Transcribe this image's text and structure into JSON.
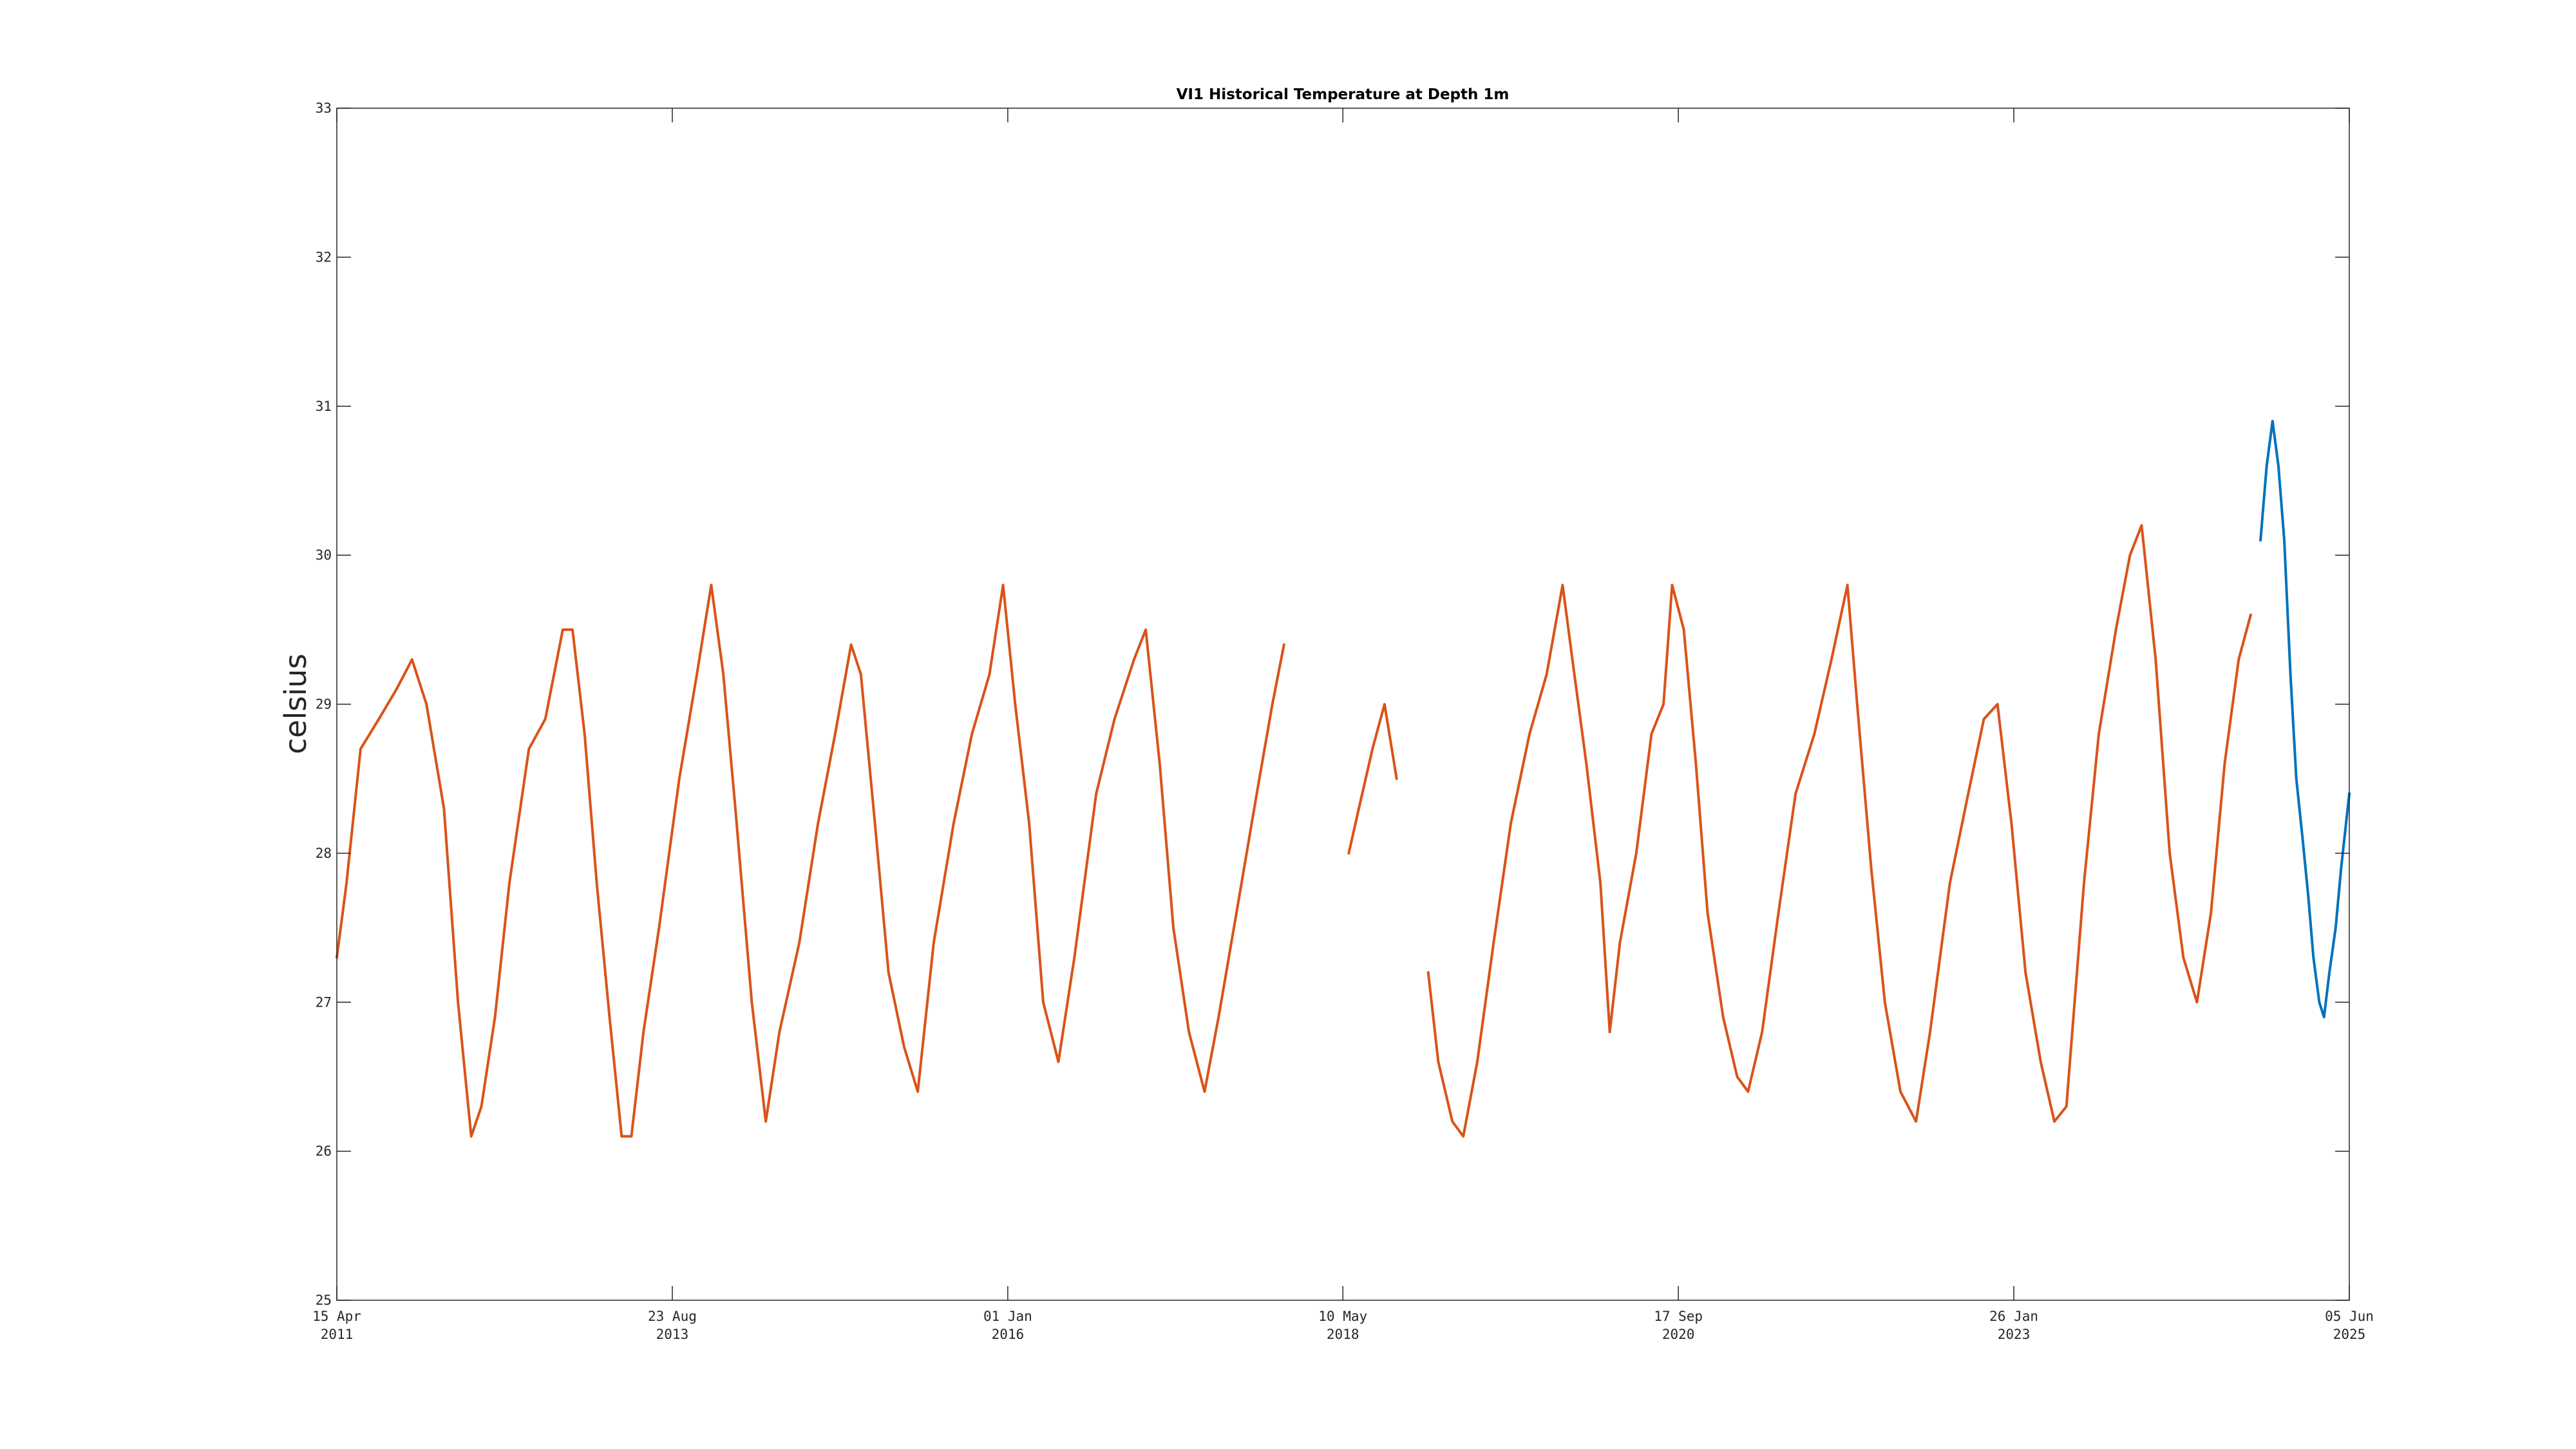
{
  "chart_data": {
    "type": "line",
    "title": "VI1 Historical Temperature at Depth 1m",
    "xlabel": "",
    "ylabel": "celsius",
    "xlim": [
      "2011-04-15",
      "2025-06-05"
    ],
    "ylim": [
      25,
      33
    ],
    "y_ticks": [
      "25",
      "26",
      "27",
      "28",
      "29",
      "30",
      "31",
      "32",
      "33"
    ],
    "x_ticks": [
      {
        "date": "2011-04-15",
        "line1": "15 Apr",
        "line2": "2011"
      },
      {
        "date": "2013-08-23",
        "line1": "23 Aug",
        "line2": "2013"
      },
      {
        "date": "2016-01-01",
        "line1": "01 Jan",
        "line2": "2016"
      },
      {
        "date": "2018-05-10",
        "line1": "10 May",
        "line2": "2018"
      },
      {
        "date": "2020-09-17",
        "line1": "17 Sep",
        "line2": "2020"
      },
      {
        "date": "2023-01-26",
        "line1": "26 Jan",
        "line2": "2023"
      },
      {
        "date": "2025-06-05",
        "line1": "05 Jun",
        "line2": "2025"
      }
    ],
    "grid": false,
    "legend": "none",
    "series": [
      {
        "color": "#D95319",
        "segments": [
          [
            [
              "2011-04-15",
              27.3
            ],
            [
              "2011-05-10",
              27.8
            ],
            [
              "2011-06-15",
              28.7
            ],
            [
              "2011-08-01",
              28.9
            ],
            [
              "2011-09-15",
              29.1
            ],
            [
              "2011-10-25",
              29.3
            ],
            [
              "2011-12-01",
              29.0
            ],
            [
              "2012-01-15",
              28.3
            ],
            [
              "2012-02-20",
              27.0
            ],
            [
              "2012-03-25",
              26.1
            ],
            [
              "2012-04-20",
              26.3
            ],
            [
              "2012-05-25",
              26.9
            ],
            [
              "2012-07-01",
              27.8
            ],
            [
              "2012-08-20",
              28.7
            ],
            [
              "2012-10-01",
              28.9
            ],
            [
              "2012-11-15",
              29.5
            ],
            [
              "2012-12-10",
              29.5
            ],
            [
              "2013-01-10",
              28.8
            ],
            [
              "2013-02-10",
              27.8
            ],
            [
              "2013-03-15",
              26.9
            ],
            [
              "2013-04-15",
              26.1
            ],
            [
              "2013-05-10",
              26.1
            ],
            [
              "2013-06-10",
              26.8
            ],
            [
              "2013-07-20",
              27.5
            ],
            [
              "2013-09-10",
              28.5
            ],
            [
              "2013-10-25",
              29.2
            ],
            [
              "2013-12-01",
              29.8
            ],
            [
              "2014-01-01",
              29.2
            ],
            [
              "2014-02-01",
              28.3
            ],
            [
              "2014-03-15",
              27.0
            ],
            [
              "2014-04-20",
              26.2
            ],
            [
              "2014-05-25",
              26.8
            ],
            [
              "2014-07-15",
              27.4
            ],
            [
              "2014-09-01",
              28.2
            ],
            [
              "2014-10-15",
              28.8
            ],
            [
              "2014-11-25",
              29.4
            ],
            [
              "2014-12-20",
              29.2
            ],
            [
              "2015-01-25",
              28.2
            ],
            [
              "2015-03-01",
              27.2
            ],
            [
              "2015-04-10",
              26.7
            ],
            [
              "2015-05-15",
              26.4
            ],
            [
              "2015-06-25",
              27.4
            ],
            [
              "2015-08-15",
              28.2
            ],
            [
              "2015-10-01",
              28.8
            ],
            [
              "2015-11-15",
              29.2
            ],
            [
              "2015-12-20",
              29.8
            ],
            [
              "2016-01-20",
              29.0
            ],
            [
              "2016-02-25",
              28.2
            ],
            [
              "2016-04-01",
              27.0
            ],
            [
              "2016-05-10",
              26.6
            ],
            [
              "2016-06-20",
              27.3
            ],
            [
              "2016-08-15",
              28.4
            ],
            [
              "2016-10-01",
              28.9
            ],
            [
              "2016-11-20",
              29.3
            ],
            [
              "2016-12-20",
              29.5
            ],
            [
              "2017-01-25",
              28.6
            ],
            [
              "2017-03-01",
              27.5
            ],
            [
              "2017-04-10",
              26.8
            ],
            [
              "2017-05-20",
              26.4
            ],
            [
              "2017-06-25",
              26.9
            ],
            [
              "2017-08-10",
              27.6
            ],
            [
              "2017-10-01",
              28.4
            ],
            [
              "2017-11-10",
              29.0
            ],
            [
              "2017-12-10",
              29.4
            ]
          ],
          [
            [
              "2018-05-25",
              28.0
            ],
            [
              "2018-06-20",
              28.3
            ],
            [
              "2018-07-25",
              28.7
            ],
            [
              "2018-08-25",
              29.0
            ],
            [
              "2018-09-25",
              28.5
            ]
          ],
          [
            [
              "2018-12-15",
              27.2
            ],
            [
              "2019-01-10",
              26.6
            ],
            [
              "2019-02-15",
              26.2
            ],
            [
              "2019-03-15",
              26.1
            ],
            [
              "2019-04-20",
              26.6
            ],
            [
              "2019-06-01",
              27.4
            ],
            [
              "2019-07-15",
              28.2
            ],
            [
              "2019-09-01",
              28.8
            ],
            [
              "2019-10-15",
              29.2
            ],
            [
              "2019-11-25",
              29.8
            ],
            [
              "2019-12-20",
              29.3
            ],
            [
              "2020-01-25",
              28.6
            ],
            [
              "2020-03-01",
              27.8
            ],
            [
              "2020-03-25",
              26.8
            ],
            [
              "2020-04-20",
              27.4
            ],
            [
              "2020-06-01",
              28.0
            ],
            [
              "2020-07-10",
              28.8
            ],
            [
              "2020-08-10",
              29.0
            ],
            [
              "2020-09-01",
              29.8
            ],
            [
              "2020-10-01",
              29.5
            ],
            [
              "2020-11-01",
              28.6
            ],
            [
              "2020-12-01",
              27.6
            ],
            [
              "2021-01-10",
              26.9
            ],
            [
              "2021-02-15",
              26.5
            ],
            [
              "2021-03-15",
              26.4
            ],
            [
              "2021-04-20",
              26.8
            ],
            [
              "2021-06-01",
              27.6
            ],
            [
              "2021-07-15",
              28.4
            ],
            [
              "2021-09-01",
              28.8
            ],
            [
              "2021-10-15",
              29.3
            ],
            [
              "2021-11-25",
              29.8
            ],
            [
              "2021-12-20",
              29.0
            ],
            [
              "2022-01-25",
              27.9
            ],
            [
              "2022-03-01",
              27.0
            ],
            [
              "2022-04-10",
              26.4
            ],
            [
              "2022-05-20",
              26.2
            ],
            [
              "2022-06-25",
              26.8
            ],
            [
              "2022-08-15",
              27.8
            ],
            [
              "2022-10-01",
              28.4
            ],
            [
              "2022-11-10",
              28.9
            ],
            [
              "2022-12-15",
              29.0
            ],
            [
              "2023-01-20",
              28.2
            ],
            [
              "2023-02-25",
              27.2
            ],
            [
              "2023-04-05",
              26.6
            ],
            [
              "2023-05-10",
              26.2
            ],
            [
              "2023-06-10",
              26.3
            ],
            [
              "2023-07-25",
              27.8
            ],
            [
              "2023-09-01",
              28.8
            ],
            [
              "2023-10-15",
              29.5
            ],
            [
              "2023-11-20",
              30.0
            ],
            [
              "2023-12-20",
              30.2
            ],
            [
              "2024-01-25",
              29.3
            ],
            [
              "2024-03-01",
              28.0
            ],
            [
              "2024-04-05",
              27.3
            ],
            [
              "2024-05-10",
              27.0
            ],
            [
              "2024-06-15",
              27.6
            ],
            [
              "2024-07-20",
              28.6
            ],
            [
              "2024-08-25",
              29.3
            ],
            [
              "2024-09-25",
              29.6
            ]
          ]
        ]
      },
      {
        "color": "#0072BD",
        "segments": [
          [
            [
              "2024-10-20",
              30.1
            ],
            [
              "2024-11-05",
              30.6
            ],
            [
              "2024-11-20",
              30.9
            ],
            [
              "2024-12-05",
              30.6
            ],
            [
              "2024-12-20",
              30.1
            ],
            [
              "2025-01-05",
              29.2
            ],
            [
              "2025-01-20",
              28.5
            ],
            [
              "2025-02-05",
              28.1
            ],
            [
              "2025-02-20",
              27.7
            ],
            [
              "2025-03-05",
              27.3
            ],
            [
              "2025-03-20",
              27.0
            ],
            [
              "2025-04-01",
              26.9
            ],
            [
              "2025-04-15",
              27.2
            ],
            [
              "2025-05-01",
              27.5
            ],
            [
              "2025-05-15",
              27.9
            ],
            [
              "2025-06-05",
              28.4
            ]
          ]
        ]
      }
    ]
  }
}
